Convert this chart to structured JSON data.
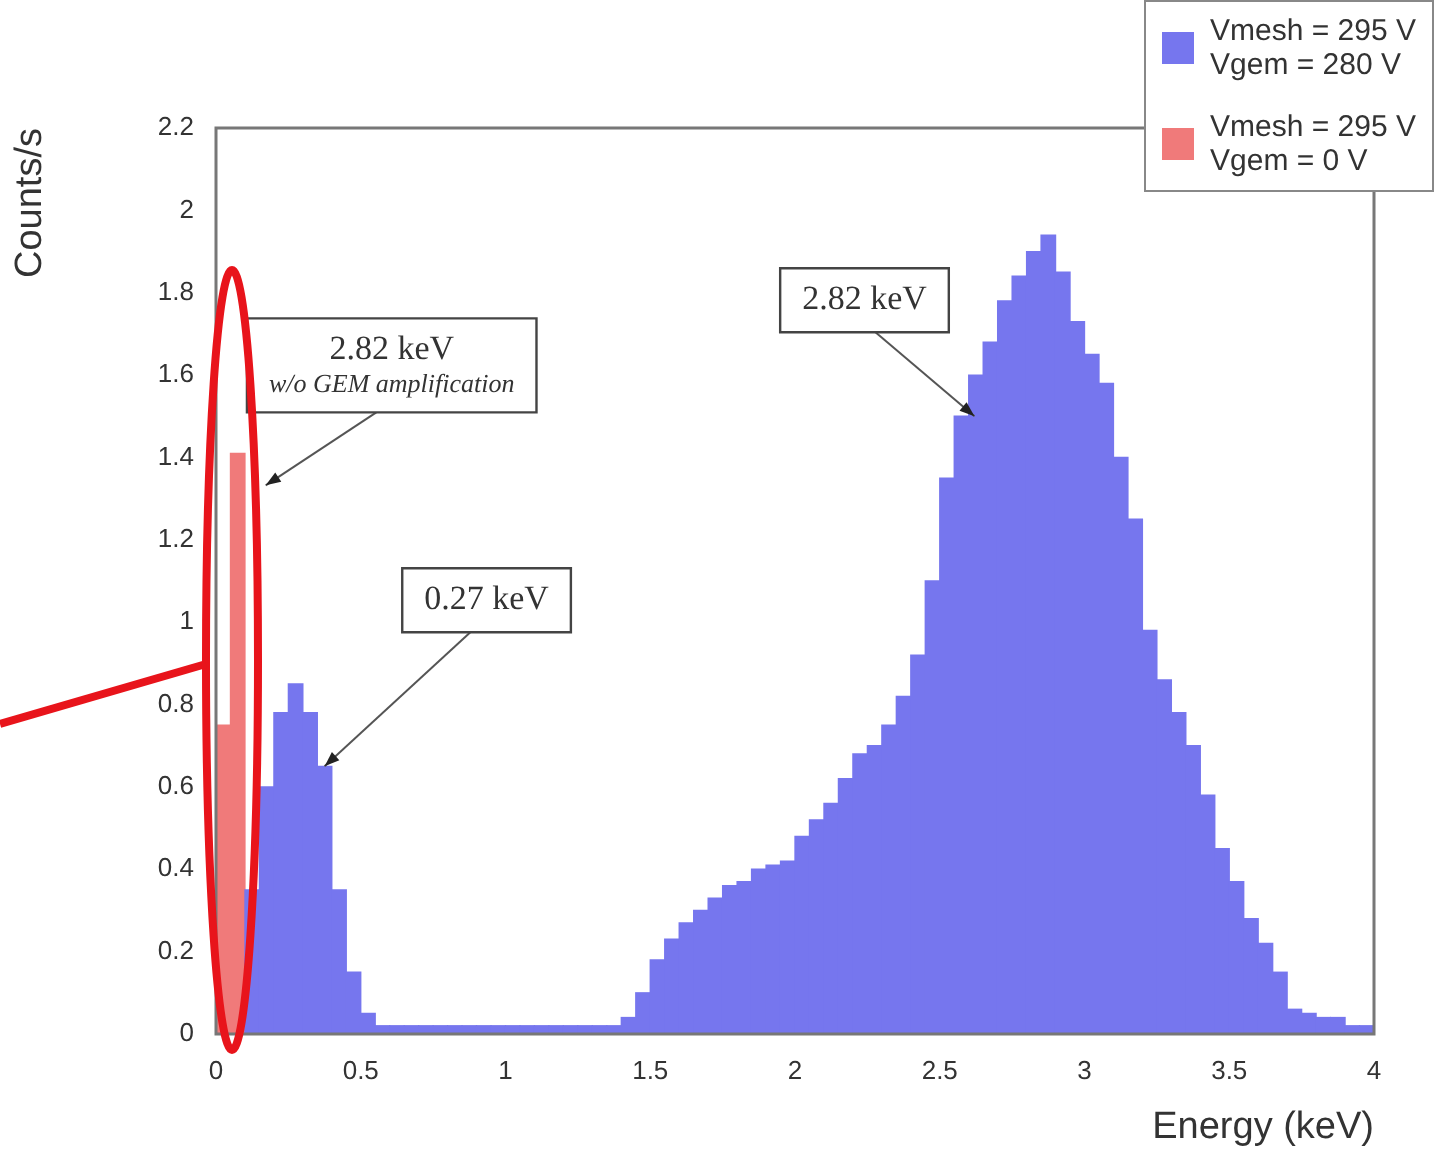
{
  "chart_data": {
    "type": "histogram",
    "xlabel": "Energy (keV)",
    "ylabel": "Counts/s",
    "bins": [
      0,
      0.05,
      0.1,
      0.15,
      0.2,
      0.25,
      0.3,
      0.35,
      0.4,
      0.45,
      0.5,
      0.55,
      0.6,
      0.65,
      0.7,
      0.75,
      0.8,
      0.85,
      0.9,
      0.95,
      1,
      1.05,
      1.1,
      1.15,
      1.2,
      1.25,
      1.3,
      1.35,
      1.4,
      1.45,
      1.5,
      1.55,
      1.6,
      1.65,
      1.7,
      1.75,
      1.8,
      1.85,
      1.9,
      1.95,
      2,
      2.05,
      2.1,
      2.15,
      2.2,
      2.25,
      2.3,
      2.35,
      2.4,
      2.45,
      2.5,
      2.55,
      2.6,
      2.65,
      2.7,
      2.75,
      2.8,
      2.85,
      2.9,
      2.95,
      3,
      3.05,
      3.1,
      3.15,
      3.2,
      3.25,
      3.3,
      3.35,
      3.4,
      3.45,
      3.5,
      3.55,
      3.6,
      3.65,
      3.7,
      3.75,
      3.8,
      3.85,
      3.9,
      3.95,
      4
    ],
    "series": [
      {
        "name": "Vmesh = 295 V\nVgem = 280 V",
        "color": "#7676ee",
        "values": [
          null,
          null,
          0.35,
          0.6,
          0.78,
          0.85,
          0.78,
          0.65,
          0.35,
          0.15,
          0.05,
          0.02,
          0.02,
          0.02,
          0.02,
          0.02,
          0.02,
          0.02,
          0.02,
          0.02,
          0.02,
          0.02,
          0.02,
          0.02,
          0.02,
          0.02,
          0.02,
          0.02,
          0.04,
          0.1,
          0.18,
          0.23,
          0.27,
          0.3,
          0.33,
          0.36,
          0.37,
          0.4,
          0.41,
          0.42,
          0.48,
          0.52,
          0.56,
          0.62,
          0.68,
          0.7,
          0.75,
          0.82,
          0.92,
          1.1,
          1.35,
          1.5,
          1.6,
          1.68,
          1.78,
          1.84,
          1.9,
          1.94,
          1.85,
          1.73,
          1.65,
          1.58,
          1.4,
          1.25,
          0.98,
          0.86,
          0.78,
          0.7,
          0.58,
          0.45,
          0.37,
          0.28,
          0.22,
          0.15,
          0.06,
          0.05,
          0.04,
          0.04,
          0.02,
          0.02
        ]
      },
      {
        "name": "Vmesh = 295 V\nVgem = 0 V",
        "color": "#f07a7a",
        "values": [
          0.75,
          1.41,
          0,
          0,
          0,
          0,
          0,
          0,
          0,
          0,
          0,
          0,
          0,
          0,
          0,
          0,
          0,
          0,
          0,
          0,
          0,
          0,
          0,
          0,
          0,
          0,
          0,
          0,
          0,
          0,
          0,
          0,
          0,
          0,
          0,
          0,
          0,
          0,
          0,
          0,
          0,
          0,
          0,
          0,
          0,
          0,
          0,
          0,
          0,
          0,
          0,
          0,
          0,
          0,
          0,
          0,
          0,
          0,
          0,
          0,
          0,
          0,
          0,
          0,
          0,
          0,
          0,
          0,
          0,
          0,
          0,
          0,
          0,
          0,
          0,
          0,
          0,
          0,
          0,
          0
        ]
      }
    ],
    "xlim": [
      0,
      4
    ],
    "xticks": [
      0,
      0.5,
      1,
      1.5,
      2,
      2.5,
      3,
      3.5,
      4
    ],
    "ylim": [
      0,
      2.2
    ],
    "yticks": [
      0,
      0.2,
      0.4,
      0.6,
      0.8,
      1,
      1.2,
      1.4,
      1.6,
      1.8,
      2,
      2.2
    ],
    "legend": "top right",
    "annotations": [
      {
        "text": "2.82 keV\nw/o GEM amplification",
        "x": 0.075,
        "y": 1.41
      },
      {
        "text": "0.27 keV",
        "x": 0.375,
        "y": 0.65
      },
      {
        "text": "2.82 keV",
        "x": 2.62,
        "y": 1.5
      }
    ]
  }
}
